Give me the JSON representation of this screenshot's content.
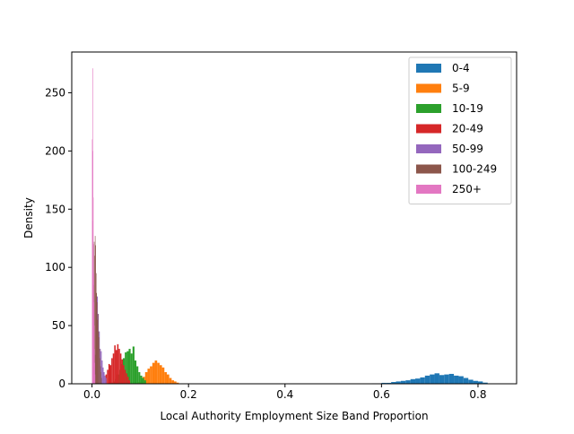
{
  "chart_data": {
    "type": "histogram",
    "title": "",
    "xlabel": "Local Authority Employment Size Band Proportion",
    "ylabel": "Density",
    "xlim": [
      -0.042,
      0.88
    ],
    "ylim": [
      0,
      285
    ],
    "x_ticks": [
      0.0,
      0.2,
      0.4,
      0.6,
      0.8
    ],
    "x_tick_labels": [
      "0.0",
      "0.2",
      "0.4",
      "0.6",
      "0.8"
    ],
    "y_ticks": [
      0,
      50,
      100,
      150,
      200,
      250
    ],
    "y_tick_labels": [
      "0",
      "50",
      "100",
      "150",
      "200",
      "250"
    ],
    "legend": {
      "position": "upper-right",
      "entries": [
        "0-4",
        "5-9",
        "10-19",
        "20-49",
        "50-99",
        "100-249",
        "250+"
      ]
    },
    "series": [
      {
        "name": "0-4",
        "color": "#1f77b4",
        "bins": [
          [
            0.58,
            0.59,
            0.4
          ],
          [
            0.59,
            0.6,
            0.4
          ],
          [
            0.6,
            0.61,
            0.8
          ],
          [
            0.61,
            0.62,
            0.8
          ],
          [
            0.62,
            0.63,
            1.5
          ],
          [
            0.63,
            0.64,
            2.0
          ],
          [
            0.64,
            0.65,
            2.5
          ],
          [
            0.65,
            0.66,
            3.0
          ],
          [
            0.66,
            0.67,
            4.0
          ],
          [
            0.67,
            0.68,
            4.5
          ],
          [
            0.68,
            0.69,
            5.5
          ],
          [
            0.69,
            0.7,
            7.0
          ],
          [
            0.7,
            0.71,
            8.0
          ],
          [
            0.71,
            0.72,
            9.0
          ],
          [
            0.72,
            0.73,
            7.5
          ],
          [
            0.73,
            0.74,
            8.0
          ],
          [
            0.74,
            0.75,
            8.5
          ],
          [
            0.75,
            0.76,
            7.0
          ],
          [
            0.76,
            0.77,
            6.5
          ],
          [
            0.77,
            0.78,
            5.0
          ],
          [
            0.78,
            0.79,
            3.5
          ],
          [
            0.79,
            0.8,
            2.5
          ],
          [
            0.8,
            0.81,
            2.0
          ],
          [
            0.81,
            0.82,
            1.0
          ]
        ]
      },
      {
        "name": "5-9",
        "color": "#ff7f0e",
        "bins": [
          [
            0.09,
            0.095,
            0.5
          ],
          [
            0.095,
            0.1,
            1.5
          ],
          [
            0.1,
            0.105,
            3.0
          ],
          [
            0.105,
            0.11,
            6.0
          ],
          [
            0.11,
            0.115,
            10.0
          ],
          [
            0.115,
            0.12,
            13.0
          ],
          [
            0.12,
            0.125,
            15.0
          ],
          [
            0.125,
            0.13,
            18.0
          ],
          [
            0.13,
            0.135,
            20.0
          ],
          [
            0.135,
            0.14,
            18.0
          ],
          [
            0.14,
            0.145,
            16.0
          ],
          [
            0.145,
            0.15,
            14.0
          ],
          [
            0.15,
            0.155,
            10.0
          ],
          [
            0.155,
            0.16,
            8.0
          ],
          [
            0.16,
            0.165,
            5.0
          ],
          [
            0.165,
            0.17,
            3.0
          ],
          [
            0.17,
            0.175,
            2.0
          ],
          [
            0.175,
            0.18,
            1.0
          ]
        ]
      },
      {
        "name": "10-19",
        "color": "#2ca02c",
        "bins": [
          [
            0.04,
            0.044,
            1.0
          ],
          [
            0.044,
            0.048,
            2.0
          ],
          [
            0.048,
            0.052,
            4.0
          ],
          [
            0.052,
            0.056,
            8.0
          ],
          [
            0.056,
            0.06,
            12.0
          ],
          [
            0.06,
            0.064,
            17.0
          ],
          [
            0.064,
            0.068,
            22.0
          ],
          [
            0.068,
            0.072,
            27.0
          ],
          [
            0.072,
            0.076,
            28.0
          ],
          [
            0.076,
            0.08,
            30.0
          ],
          [
            0.08,
            0.084,
            26.0
          ],
          [
            0.084,
            0.088,
            32.0
          ],
          [
            0.088,
            0.092,
            20.0
          ],
          [
            0.092,
            0.096,
            15.0
          ],
          [
            0.096,
            0.1,
            10.0
          ],
          [
            0.1,
            0.104,
            7.0
          ],
          [
            0.104,
            0.108,
            5.0
          ],
          [
            0.108,
            0.112,
            3.0
          ]
        ]
      },
      {
        "name": "20-49",
        "color": "#d62728",
        "bins": [
          [
            0.028,
            0.031,
            8.0
          ],
          [
            0.031,
            0.034,
            12.0
          ],
          [
            0.034,
            0.037,
            17.0
          ],
          [
            0.037,
            0.04,
            16.0
          ],
          [
            0.04,
            0.043,
            22.0
          ],
          [
            0.043,
            0.046,
            26.0
          ],
          [
            0.046,
            0.049,
            33.0
          ],
          [
            0.049,
            0.052,
            29.0
          ],
          [
            0.052,
            0.055,
            34.0
          ],
          [
            0.055,
            0.058,
            30.0
          ],
          [
            0.058,
            0.061,
            26.0
          ],
          [
            0.061,
            0.064,
            21.0
          ],
          [
            0.064,
            0.067,
            16.0
          ],
          [
            0.067,
            0.07,
            12.0
          ],
          [
            0.07,
            0.073,
            9.0
          ],
          [
            0.073,
            0.076,
            6.0
          ],
          [
            0.076,
            0.079,
            3.0
          ]
        ]
      },
      {
        "name": "50-99",
        "color": "#9467bd",
        "bins": [
          [
            0.006,
            0.008,
            25.0
          ],
          [
            0.008,
            0.01,
            55.0
          ],
          [
            0.01,
            0.012,
            75.0
          ],
          [
            0.012,
            0.014,
            60.0
          ],
          [
            0.014,
            0.016,
            45.0
          ],
          [
            0.016,
            0.018,
            30.0
          ],
          [
            0.018,
            0.02,
            28.0
          ],
          [
            0.02,
            0.022,
            20.0
          ],
          [
            0.022,
            0.024,
            14.0
          ],
          [
            0.024,
            0.026,
            10.0
          ],
          [
            0.026,
            0.028,
            7.0
          ],
          [
            0.028,
            0.03,
            5.0
          ]
        ]
      },
      {
        "name": "100-249",
        "color": "#8c564b",
        "bins": [
          [
            0.001,
            0.002,
            15.0
          ],
          [
            0.002,
            0.003,
            60.0
          ],
          [
            0.003,
            0.004,
            85.0
          ],
          [
            0.004,
            0.005,
            122.0
          ],
          [
            0.005,
            0.006,
            110.0
          ],
          [
            0.006,
            0.007,
            127.0
          ],
          [
            0.007,
            0.008,
            119.0
          ],
          [
            0.008,
            0.009,
            95.0
          ],
          [
            0.009,
            0.01,
            78.0
          ],
          [
            0.01,
            0.011,
            70.0
          ],
          [
            0.011,
            0.012,
            55.0
          ],
          [
            0.012,
            0.013,
            60.0
          ],
          [
            0.013,
            0.014,
            45.0
          ],
          [
            0.014,
            0.015,
            40.0
          ],
          [
            0.015,
            0.016,
            30.0
          ],
          [
            0.016,
            0.017,
            22.0
          ],
          [
            0.017,
            0.018,
            15.0
          ],
          [
            0.018,
            0.019,
            10.0
          ],
          [
            0.019,
            0.02,
            5.0
          ]
        ]
      },
      {
        "name": "250+",
        "color": "#e377c2",
        "bins": [
          [
            0.0,
            0.0005,
            210.0
          ],
          [
            0.0005,
            0.001,
            140.0
          ],
          [
            0.001,
            0.0015,
            271.0
          ],
          [
            0.0015,
            0.002,
            200.0
          ],
          [
            0.002,
            0.0025,
            160.0
          ],
          [
            0.0025,
            0.003,
            120.0
          ],
          [
            0.003,
            0.0035,
            95.0
          ],
          [
            0.0035,
            0.004,
            70.0
          ],
          [
            0.004,
            0.0045,
            50.0
          ],
          [
            0.0045,
            0.005,
            30.0
          ],
          [
            0.005,
            0.0055,
            18.0
          ],
          [
            0.0055,
            0.006,
            8.0
          ]
        ]
      }
    ]
  }
}
